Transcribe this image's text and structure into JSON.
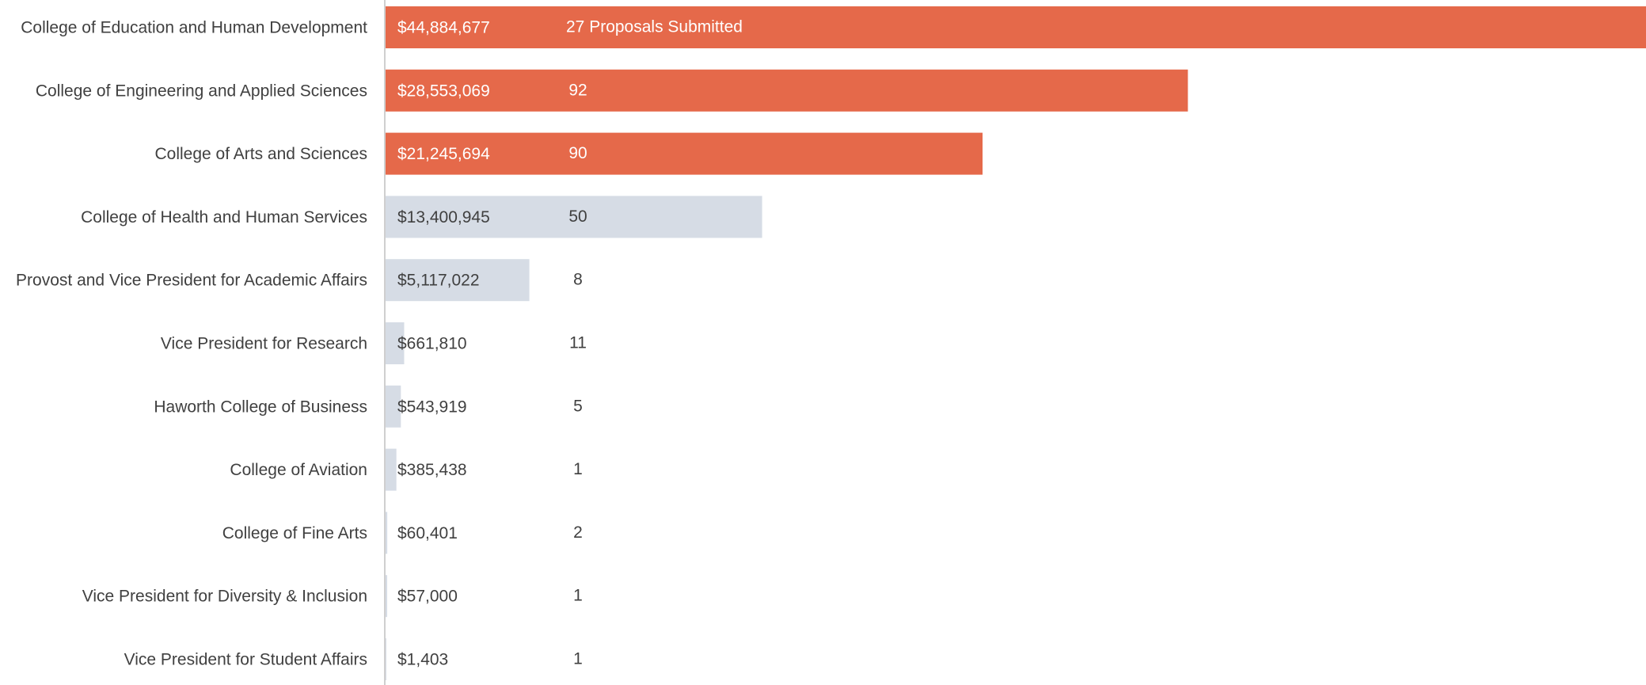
{
  "chart_data": {
    "type": "bar",
    "orientation": "horizontal",
    "categories": [
      "College of Education and Human Development",
      "College of Engineering and Applied Sciences",
      "College of Arts and Sciences",
      "College of Health and Human Services",
      "Provost and Vice President for Academic Affairs",
      "Vice President for Research",
      "Haworth College of Business",
      "College of Aviation",
      "College of Fine Arts",
      "Vice President for Diversity & Inclusion",
      "Vice President for Student Affairs"
    ],
    "values": [
      44884677,
      28553069,
      21245694,
      13400945,
      5117022,
      661810,
      543919,
      385438,
      60401,
      57000,
      1403
    ],
    "value_labels": [
      "$44,884,677",
      "$28,553,069",
      "$21,245,694",
      "$13,400,945",
      "$5,117,022",
      "$661,810",
      "$543,919",
      "$385,438",
      "$60,401",
      "$57,000",
      "$1,403"
    ],
    "proposal_counts": [
      27,
      92,
      90,
      50,
      8,
      11,
      5,
      1,
      2,
      1,
      1
    ],
    "proposal_count_labels": [
      "27 Proposals Submitted",
      "92",
      "90",
      "50",
      "8",
      "11",
      "5",
      "1",
      "2",
      "1",
      "1"
    ],
    "bar_colors": [
      "#e5694a",
      "#e5694a",
      "#e5694a",
      "#d6dce5",
      "#d6dce5",
      "#d6dce5",
      "#d6dce5",
      "#d6dce5",
      "#d6dce5",
      "#d6dce5",
      "#d6dce5"
    ],
    "label_colors_on_bar": [
      "#ffffff",
      "#ffffff",
      "#ffffff",
      "#404040",
      "#404040",
      "#404040",
      "#404040",
      "#404040",
      "#404040",
      "#404040",
      "#404040"
    ],
    "xlim": [
      0,
      44884677
    ],
    "grid": false,
    "legend": "none",
    "axis_color": "#bfbfbf"
  }
}
